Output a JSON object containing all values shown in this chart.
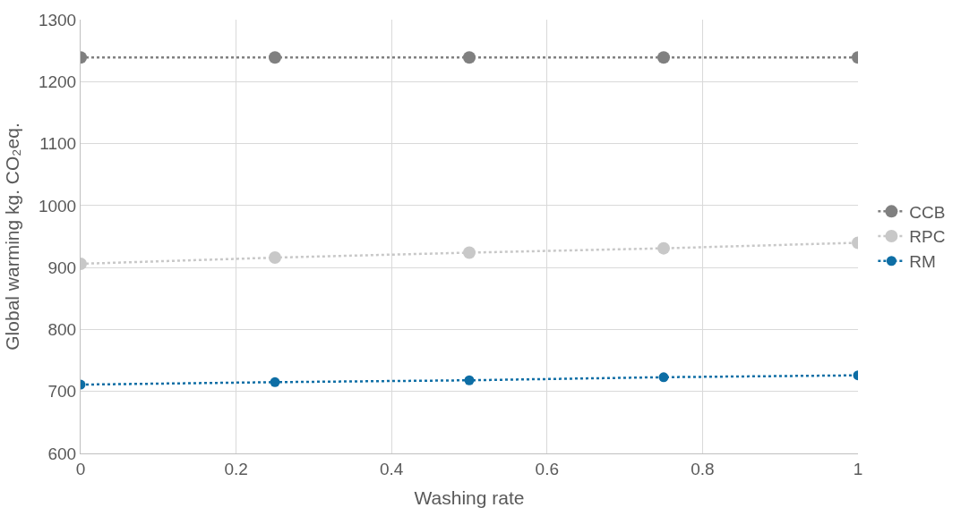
{
  "chart_data": {
    "type": "line",
    "xlabel": "Washing rate",
    "ylabel": "Global warming kg. CO₂eq.",
    "x": [
      0,
      0.25,
      0.5,
      0.75,
      1
    ],
    "series": [
      {
        "name": "CCB",
        "color": "#808080",
        "values": [
          1239,
          1239,
          1239,
          1239,
          1239
        ]
      },
      {
        "name": "RPC",
        "color": "#c8c8c8",
        "values": [
          906,
          916,
          924,
          931,
          940
        ]
      },
      {
        "name": "RM",
        "color": "#0e6ea5",
        "values": [
          711,
          715,
          718,
          723,
          726
        ]
      }
    ],
    "xlim": [
      0,
      1
    ],
    "xticks": [
      0,
      0.2,
      0.4,
      0.6,
      0.8,
      1
    ],
    "ylim": [
      600,
      1300
    ],
    "yticks": [
      600,
      700,
      800,
      900,
      1000,
      1100,
      1200,
      1300
    ],
    "grid": true,
    "legend": "right",
    "marker": "circle",
    "line_style": "dotted"
  }
}
